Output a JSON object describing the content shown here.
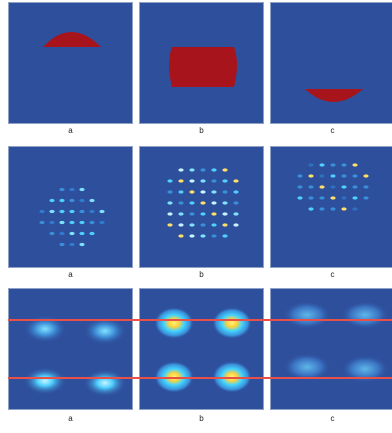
{
  "rows": [
    {
      "labels": [
        "a",
        "b",
        "c"
      ]
    },
    {
      "labels": [
        "a",
        "b",
        "c"
      ]
    },
    {
      "labels": [
        "a",
        "b",
        "c"
      ]
    }
  ],
  "colors": {
    "panel_bg": "#2e4f9c",
    "mask": "#a8141b",
    "spot_high": "#ffe066",
    "spot_mid": "#4fd0ff",
    "spot_low": "#3a8fd9",
    "line": "#e8504a"
  }
}
